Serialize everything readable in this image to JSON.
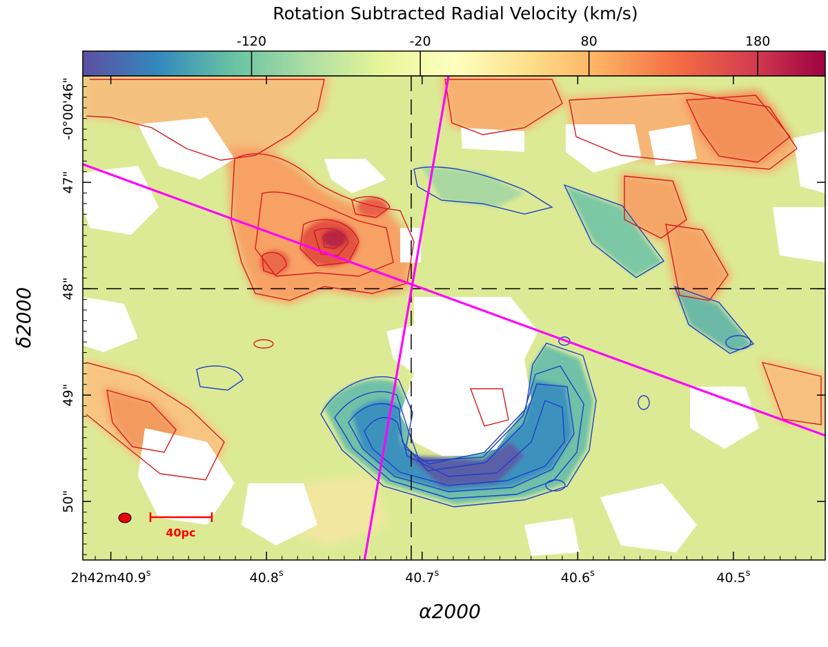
{
  "chart_data": {
    "type": "heatmap",
    "title": "Rotation Subtracted Radial Velocity (km/s)",
    "colorbar": {
      "vmin": -220,
      "vmax": 220,
      "ticks": [
        -120,
        -20,
        80,
        180
      ],
      "tick_labels": [
        "-120",
        "-20",
        "80",
        "180"
      ],
      "colormap": "Spectral_r",
      "stops": [
        "#5e4fa2",
        "#3288bd",
        "#66c2a5",
        "#abdda4",
        "#e6f598",
        "#ffffbf",
        "#fee08b",
        "#fdae61",
        "#f46d43",
        "#d53e4f",
        "#9e0142"
      ],
      "position": "top"
    },
    "xlabel": "α2000",
    "ylabel": "δ2000",
    "x_ticks": [
      {
        "value": 40.9,
        "label_main": "2h42m40.9",
        "sup": "s"
      },
      {
        "value": 40.8,
        "label_main": "40.8",
        "sup": "s"
      },
      {
        "value": 40.7,
        "label_main": "40.7",
        "sup": "s"
      },
      {
        "value": 40.6,
        "label_main": "40.6",
        "sup": "s"
      },
      {
        "value": 40.5,
        "label_main": "40.5",
        "sup": "s"
      }
    ],
    "y_ticks": [
      {
        "value": 46,
        "label": "-0°00'46\""
      },
      {
        "value": 47,
        "label": "47\""
      },
      {
        "value": 48,
        "label": "48\""
      },
      {
        "value": 49,
        "label": "49\""
      },
      {
        "value": 50,
        "label": "50\""
      }
    ],
    "xlim": [
      40.918,
      40.441
    ],
    "ylim": [
      50.55,
      46.0
    ],
    "center": {
      "ra": 40.707,
      "dec": 48.0
    },
    "axis_lines": [
      {
        "name": "magenta-axis-1",
        "color": "#ff00ff",
        "from": {
          "ra": 40.918,
          "dec": 46.83
        },
        "to": {
          "ra": 40.441,
          "dec": 49.38
        }
      },
      {
        "name": "magenta-axis-2",
        "color": "#ff00ff",
        "from": {
          "ra": 40.683,
          "dec": 46.0
        },
        "to": {
          "ra": 40.737,
          "dec": 50.55
        }
      }
    ],
    "scale_bar": {
      "label": "40pc",
      "color": "#ff0000"
    },
    "beam": {
      "color": "#e8000b"
    }
  }
}
